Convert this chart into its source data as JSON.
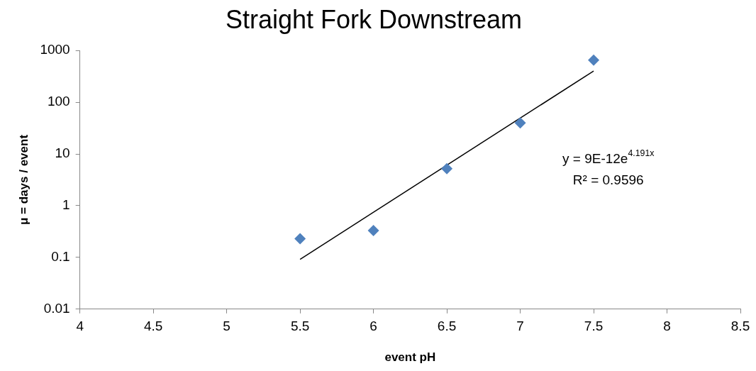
{
  "chart_data": {
    "type": "scatter",
    "title": "Straight Fork Downstream",
    "xlabel": "event pH",
    "ylabel": "μ = days / event",
    "series": [
      {
        "color": "#4f81bd",
        "x": [
          5.5,
          6.0,
          6.5,
          7.0,
          7.5
        ],
        "values": [
          0.23,
          0.33,
          5.2,
          40,
          650
        ],
        "marker": "diamond"
      },
      {
        "type": "line",
        "color": "#000000",
        "x": [
          5.5,
          7.5
        ],
        "values": [
          0.092,
          401
        ],
        "marker": "none"
      }
    ],
    "xlim": [
      4,
      8.5
    ],
    "xticks": [
      4,
      4.5,
      5,
      5.5,
      6,
      6.5,
      7,
      7.5,
      8,
      8.5
    ],
    "ylim": [
      0.01,
      1000
    ],
    "yticks": [
      0.01,
      0.1,
      1,
      10,
      100,
      1000
    ],
    "log": "y",
    "annotations": [
      "y = 9E-12e$^{4.191x}$",
      "R² = 0.9596"
    ],
    "legend": false,
    "grid": false
  }
}
